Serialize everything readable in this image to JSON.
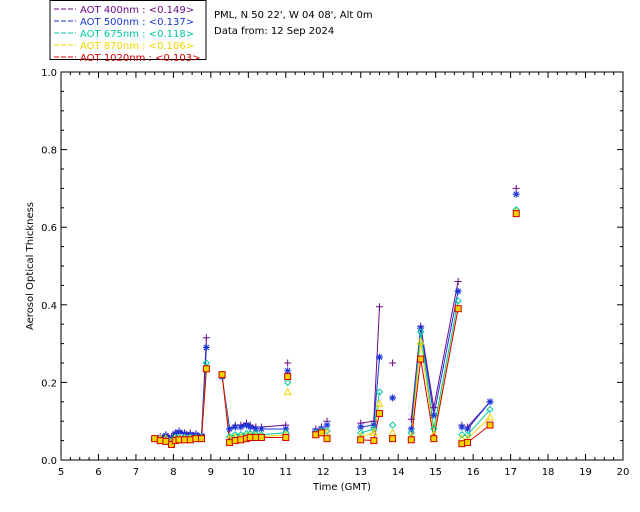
{
  "header": {
    "station": "PML, N 50 22', W 04 08', Alt 0m",
    "data_from": "Data from: 12 Sep 2024"
  },
  "chart_data": {
    "type": "line",
    "xlabel": "Time (GMT)",
    "ylabel": "Aerosol Optical Thickness",
    "xlim": [
      5,
      20
    ],
    "ylim": [
      0.0,
      1.0
    ],
    "x_ticks": [
      "5",
      "6",
      "7",
      "8",
      "9",
      "10",
      "11",
      "12",
      "13",
      "14",
      "15",
      "16",
      "17",
      "18",
      "19",
      "20"
    ],
    "y_ticks": [
      "0.0",
      "0.2",
      "0.4",
      "0.6",
      "0.8",
      "1.0"
    ],
    "legend_position": "top-left",
    "series": [
      {
        "name": "AOT  400nm : <0.149>",
        "color": "#6a0a8a",
        "marker": "plus",
        "points": [
          [
            7.5,
            0.055
          ],
          [
            7.65,
            0.06
          ],
          [
            7.8,
            0.065
          ],
          [
            7.95,
            0.06
          ],
          [
            8.05,
            0.07
          ],
          [
            8.15,
            0.075
          ],
          [
            8.3,
            0.07
          ],
          [
            8.45,
            0.07
          ],
          [
            8.6,
            0.068
          ],
          [
            8.75,
            0.065
          ],
          [
            8.88,
            0.315
          ],
          [
            9.3,
            0.215
          ],
          [
            9.5,
            0.08
          ],
          [
            9.65,
            0.09
          ],
          [
            9.8,
            0.09
          ],
          [
            9.95,
            0.095
          ],
          [
            10.05,
            0.09
          ],
          [
            10.2,
            0.085
          ],
          [
            10.35,
            0.085
          ],
          [
            11.0,
            0.09
          ],
          [
            11.05,
            0.25
          ],
          [
            11.8,
            0.08
          ],
          [
            11.95,
            0.085
          ],
          [
            12.1,
            0.1
          ],
          [
            13.0,
            0.095
          ],
          [
            13.35,
            0.1
          ],
          [
            13.5,
            0.395
          ],
          [
            13.85,
            0.25
          ],
          [
            14.35,
            0.105
          ],
          [
            14.6,
            0.345
          ],
          [
            14.95,
            0.135
          ],
          [
            15.6,
            0.46
          ],
          [
            15.7,
            0.09
          ],
          [
            15.85,
            0.085
          ],
          [
            16.45,
            0.15
          ],
          [
            17.15,
            0.7
          ]
        ],
        "connected": [
          [
            0,
            10
          ],
          [
            11,
            19
          ],
          [
            24,
            26
          ],
          [
            28,
            31
          ],
          [
            33,
            34
          ]
        ]
      },
      {
        "name": "AOT  500nm : <0.137>",
        "color": "#1a35d6",
        "marker": "asterisk",
        "points": [
          [
            7.5,
            0.055
          ],
          [
            7.65,
            0.058
          ],
          [
            7.8,
            0.063
          ],
          [
            7.95,
            0.058
          ],
          [
            8.05,
            0.068
          ],
          [
            8.15,
            0.072
          ],
          [
            8.3,
            0.068
          ],
          [
            8.45,
            0.066
          ],
          [
            8.6,
            0.065
          ],
          [
            8.75,
            0.062
          ],
          [
            8.88,
            0.29
          ],
          [
            9.3,
            0.215
          ],
          [
            9.5,
            0.08
          ],
          [
            9.65,
            0.085
          ],
          [
            9.8,
            0.085
          ],
          [
            9.95,
            0.09
          ],
          [
            10.05,
            0.085
          ],
          [
            10.2,
            0.08
          ],
          [
            10.35,
            0.08
          ],
          [
            11.0,
            0.08
          ],
          [
            11.05,
            0.23
          ],
          [
            11.8,
            0.075
          ],
          [
            11.95,
            0.08
          ],
          [
            12.1,
            0.09
          ],
          [
            13.0,
            0.085
          ],
          [
            13.35,
            0.09
          ],
          [
            13.5,
            0.265
          ],
          [
            13.85,
            0.16
          ],
          [
            14.35,
            0.08
          ],
          [
            14.6,
            0.34
          ],
          [
            14.95,
            0.115
          ],
          [
            15.6,
            0.435
          ],
          [
            15.7,
            0.085
          ],
          [
            15.85,
            0.08
          ],
          [
            16.45,
            0.15
          ],
          [
            17.15,
            0.685
          ]
        ],
        "connected": [
          [
            0,
            10
          ],
          [
            11,
            19
          ],
          [
            24,
            26
          ],
          [
            28,
            31
          ],
          [
            33,
            34
          ]
        ]
      },
      {
        "name": "AOT  675nm : <0.118>",
        "color": "#00c8a0",
        "marker": "diamond",
        "points": [
          [
            7.5,
            0.055
          ],
          [
            7.65,
            0.055
          ],
          [
            7.8,
            0.055
          ],
          [
            7.95,
            0.05
          ],
          [
            8.05,
            0.058
          ],
          [
            8.15,
            0.058
          ],
          [
            8.3,
            0.058
          ],
          [
            8.45,
            0.058
          ],
          [
            8.6,
            0.058
          ],
          [
            8.75,
            0.058
          ],
          [
            8.88,
            0.25
          ],
          [
            9.3,
            0.22
          ],
          [
            9.5,
            0.06
          ],
          [
            9.65,
            0.065
          ],
          [
            9.8,
            0.065
          ],
          [
            9.95,
            0.068
          ],
          [
            10.05,
            0.068
          ],
          [
            10.2,
            0.068
          ],
          [
            10.35,
            0.065
          ],
          [
            11.0,
            0.07
          ],
          [
            11.05,
            0.2
          ],
          [
            11.8,
            0.07
          ],
          [
            11.95,
            0.075
          ],
          [
            12.1,
            0.075
          ],
          [
            13.0,
            0.07
          ],
          [
            13.35,
            0.08
          ],
          [
            13.5,
            0.175
          ],
          [
            13.85,
            0.09
          ],
          [
            14.35,
            0.07
          ],
          [
            14.6,
            0.33
          ],
          [
            14.95,
            0.08
          ],
          [
            15.6,
            0.41
          ],
          [
            15.7,
            0.065
          ],
          [
            15.85,
            0.065
          ],
          [
            16.45,
            0.13
          ],
          [
            17.15,
            0.645
          ]
        ],
        "connected": [
          [
            0,
            10
          ],
          [
            11,
            19
          ],
          [
            24,
            26
          ],
          [
            28,
            31
          ],
          [
            33,
            34
          ]
        ]
      },
      {
        "name": "AOT  870nm : <0.106>",
        "color": "#f0d400",
        "marker": "triangle",
        "points": [
          [
            7.5,
            0.055
          ],
          [
            7.65,
            0.055
          ],
          [
            7.8,
            0.055
          ],
          [
            7.95,
            0.045
          ],
          [
            8.05,
            0.055
          ],
          [
            8.15,
            0.055
          ],
          [
            8.3,
            0.055
          ],
          [
            8.45,
            0.055
          ],
          [
            8.6,
            0.055
          ],
          [
            8.75,
            0.055
          ],
          [
            8.88,
            0.235
          ],
          [
            9.3,
            0.22
          ],
          [
            9.5,
            0.055
          ],
          [
            9.65,
            0.058
          ],
          [
            9.8,
            0.058
          ],
          [
            9.95,
            0.06
          ],
          [
            10.05,
            0.062
          ],
          [
            10.2,
            0.062
          ],
          [
            10.35,
            0.06
          ],
          [
            11.0,
            0.065
          ],
          [
            11.05,
            0.175
          ],
          [
            11.8,
            0.065
          ],
          [
            11.95,
            0.07
          ],
          [
            12.1,
            0.07
          ],
          [
            13.0,
            0.06
          ],
          [
            13.35,
            0.07
          ],
          [
            13.5,
            0.145
          ],
          [
            13.85,
            0.07
          ],
          [
            14.35,
            0.06
          ],
          [
            14.6,
            0.305
          ],
          [
            14.95,
            0.065
          ],
          [
            15.6,
            0.39
          ],
          [
            15.7,
            0.055
          ],
          [
            15.85,
            0.055
          ],
          [
            16.45,
            0.11
          ],
          [
            17.15,
            0.64
          ]
        ],
        "connected": [
          [
            0,
            10
          ],
          [
            11,
            19
          ],
          [
            24,
            26
          ],
          [
            28,
            31
          ],
          [
            33,
            34
          ]
        ]
      },
      {
        "name": "AOT 1020nm : <0.103>",
        "color": "#d40000",
        "marker": "square",
        "points": [
          [
            7.5,
            0.055
          ],
          [
            7.65,
            0.05
          ],
          [
            7.8,
            0.048
          ],
          [
            7.95,
            0.04
          ],
          [
            8.05,
            0.05
          ],
          [
            8.15,
            0.052
          ],
          [
            8.3,
            0.052
          ],
          [
            8.45,
            0.052
          ],
          [
            8.6,
            0.055
          ],
          [
            8.75,
            0.055
          ],
          [
            8.88,
            0.235
          ],
          [
            9.3,
            0.22
          ],
          [
            9.5,
            0.045
          ],
          [
            9.65,
            0.05
          ],
          [
            9.8,
            0.052
          ],
          [
            9.95,
            0.055
          ],
          [
            10.05,
            0.058
          ],
          [
            10.2,
            0.058
          ],
          [
            10.35,
            0.058
          ],
          [
            11.0,
            0.058
          ],
          [
            11.05,
            0.215
          ],
          [
            11.8,
            0.065
          ],
          [
            11.95,
            0.07
          ],
          [
            12.1,
            0.055
          ],
          [
            13.0,
            0.052
          ],
          [
            13.35,
            0.05
          ],
          [
            13.5,
            0.12
          ],
          [
            13.85,
            0.055
          ],
          [
            14.35,
            0.052
          ],
          [
            14.6,
            0.26
          ],
          [
            14.95,
            0.055
          ],
          [
            15.6,
            0.39
          ],
          [
            15.7,
            0.042
          ],
          [
            15.85,
            0.045
          ],
          [
            16.45,
            0.09
          ],
          [
            17.15,
            0.635
          ]
        ],
        "connected": [
          [
            0,
            10
          ],
          [
            11,
            19
          ],
          [
            24,
            26
          ],
          [
            28,
            31
          ],
          [
            33,
            34
          ]
        ]
      }
    ]
  }
}
